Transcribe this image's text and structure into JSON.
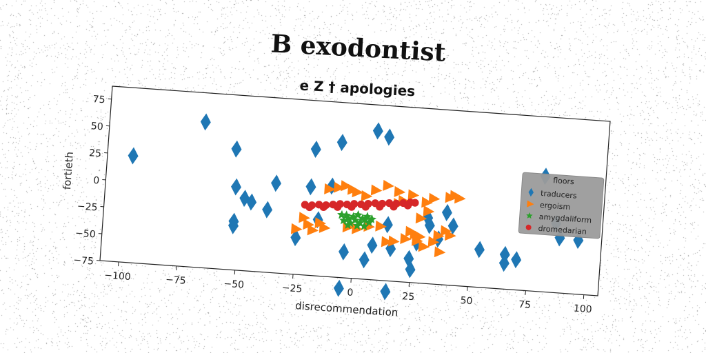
{
  "chart_data": {
    "type": "scatter",
    "title": "B exodontist",
    "subtitle": "e Z † apologies",
    "xlabel": "disrecommendation",
    "ylabel": "fortieth",
    "xlim": [
      -108,
      106
    ],
    "ylim": [
      -75,
      87
    ],
    "x_ticks": [
      -100,
      -75,
      -50,
      -25,
      0,
      25,
      50,
      75,
      100
    ],
    "y_ticks": [
      -75,
      -50,
      -25,
      0,
      25,
      50,
      75
    ],
    "grid": false,
    "legend": {
      "title": "floors",
      "placement": "right"
    },
    "series": [
      {
        "name": "traducers",
        "marker": "diamond",
        "color": "#1f77b4",
        "points": [
          [
            -97,
            24
          ],
          [
            -67,
            60
          ],
          [
            -53,
            37
          ],
          [
            -52,
            2
          ],
          [
            -52,
            -30
          ],
          [
            -52,
            -34
          ],
          [
            -48,
            -8
          ],
          [
            -45,
            -11
          ],
          [
            -38,
            -17
          ],
          [
            -35,
            8
          ],
          [
            -25,
            -41
          ],
          [
            -20,
            7
          ],
          [
            -19,
            42
          ],
          [
            -16,
            -23
          ],
          [
            -11,
            9
          ],
          [
            -8,
            50
          ],
          [
            -5,
            -85
          ],
          [
            -4,
            -51
          ],
          [
            5,
            -57
          ],
          [
            7,
            63
          ],
          [
            8,
            -43
          ],
          [
            12,
            58
          ],
          [
            14,
            -23
          ],
          [
            15,
            -85
          ],
          [
            16,
            -45
          ],
          [
            24,
            -53
          ],
          [
            25,
            -63
          ],
          [
            27,
            -38
          ],
          [
            31,
            -14
          ],
          [
            32,
            -21
          ],
          [
            36,
            -33
          ],
          [
            39,
            -8
          ],
          [
            42,
            -20
          ],
          [
            54,
            -40
          ],
          [
            65,
            -43
          ],
          [
            65,
            -51
          ],
          [
            80,
            32
          ],
          [
            86,
            -11
          ],
          [
            88,
            -24
          ],
          [
            96,
            -25
          ],
          [
            70,
            -47
          ]
        ]
      },
      {
        "name": "ergoism",
        "marker": "triangle-right",
        "color": "#ff7f0e",
        "points": [
          [
            -25,
            -33
          ],
          [
            -22,
            -22
          ],
          [
            -20,
            -28
          ],
          [
            -18,
            -33
          ],
          [
            -15,
            -26
          ],
          [
            -13,
            -30
          ],
          [
            -12,
            6
          ],
          [
            -8,
            8
          ],
          [
            -5,
            10
          ],
          [
            -3,
            -28
          ],
          [
            -2,
            7
          ],
          [
            0,
            5
          ],
          [
            1,
            -29
          ],
          [
            4,
            2
          ],
          [
            6,
            -26
          ],
          [
            8,
            8
          ],
          [
            11,
            -25
          ],
          [
            13,
            13
          ],
          [
            14,
            -39
          ],
          [
            17,
            -38
          ],
          [
            18,
            8
          ],
          [
            20,
            0
          ],
          [
            22,
            -35
          ],
          [
            24,
            6
          ],
          [
            24,
            -28
          ],
          [
            26,
            -30
          ],
          [
            27,
            -36
          ],
          [
            28,
            -32
          ],
          [
            30,
            -41
          ],
          [
            31,
            -8
          ],
          [
            33,
            4
          ],
          [
            34,
            -36
          ],
          [
            36,
            -30
          ],
          [
            37,
            -45
          ],
          [
            39,
            -25
          ],
          [
            40,
            6
          ],
          [
            41,
            -29
          ],
          [
            42,
            8
          ],
          [
            44,
            6
          ],
          [
            18,
            -3
          ],
          [
            28,
            -15
          ],
          [
            30,
            0
          ]
        ]
      },
      {
        "name": "amygdaliform",
        "marker": "star",
        "color": "#2ca02c",
        "points": [
          [
            -5,
            -22
          ],
          [
            -4,
            -17
          ],
          [
            -3,
            -20
          ],
          [
            -2,
            -24
          ],
          [
            -1,
            -18
          ],
          [
            0,
            -21
          ],
          [
            1,
            -16
          ],
          [
            2,
            -23
          ],
          [
            3,
            -19
          ],
          [
            4,
            -20
          ],
          [
            5,
            -17
          ],
          [
            6,
            -22
          ],
          [
            -3,
            -26
          ],
          [
            1,
            -26
          ],
          [
            4,
            -26
          ],
          [
            -6,
            -17
          ],
          [
            7,
            -19
          ]
        ]
      },
      {
        "name": "dromedarian",
        "marker": "circle",
        "color": "#d62728",
        "points": [
          [
            -22,
            -10
          ],
          [
            -19,
            -10
          ],
          [
            -16,
            -9
          ],
          [
            -13,
            -9
          ],
          [
            -10,
            -8
          ],
          [
            -7,
            -7
          ],
          [
            -4,
            -7
          ],
          [
            -1,
            -6
          ],
          [
            2,
            -6
          ],
          [
            5,
            -5
          ],
          [
            8,
            -4
          ],
          [
            11,
            -4
          ],
          [
            14,
            -3
          ],
          [
            17,
            -3
          ],
          [
            20,
            -2
          ],
          [
            23,
            -1
          ],
          [
            25,
            -1
          ],
          [
            -20,
            -12
          ],
          [
            -14,
            -11
          ],
          [
            -8,
            -10
          ],
          [
            -2,
            -9
          ],
          [
            4,
            -8
          ],
          [
            10,
            -7
          ],
          [
            16,
            -6
          ],
          [
            22,
            -4
          ]
        ]
      }
    ]
  }
}
